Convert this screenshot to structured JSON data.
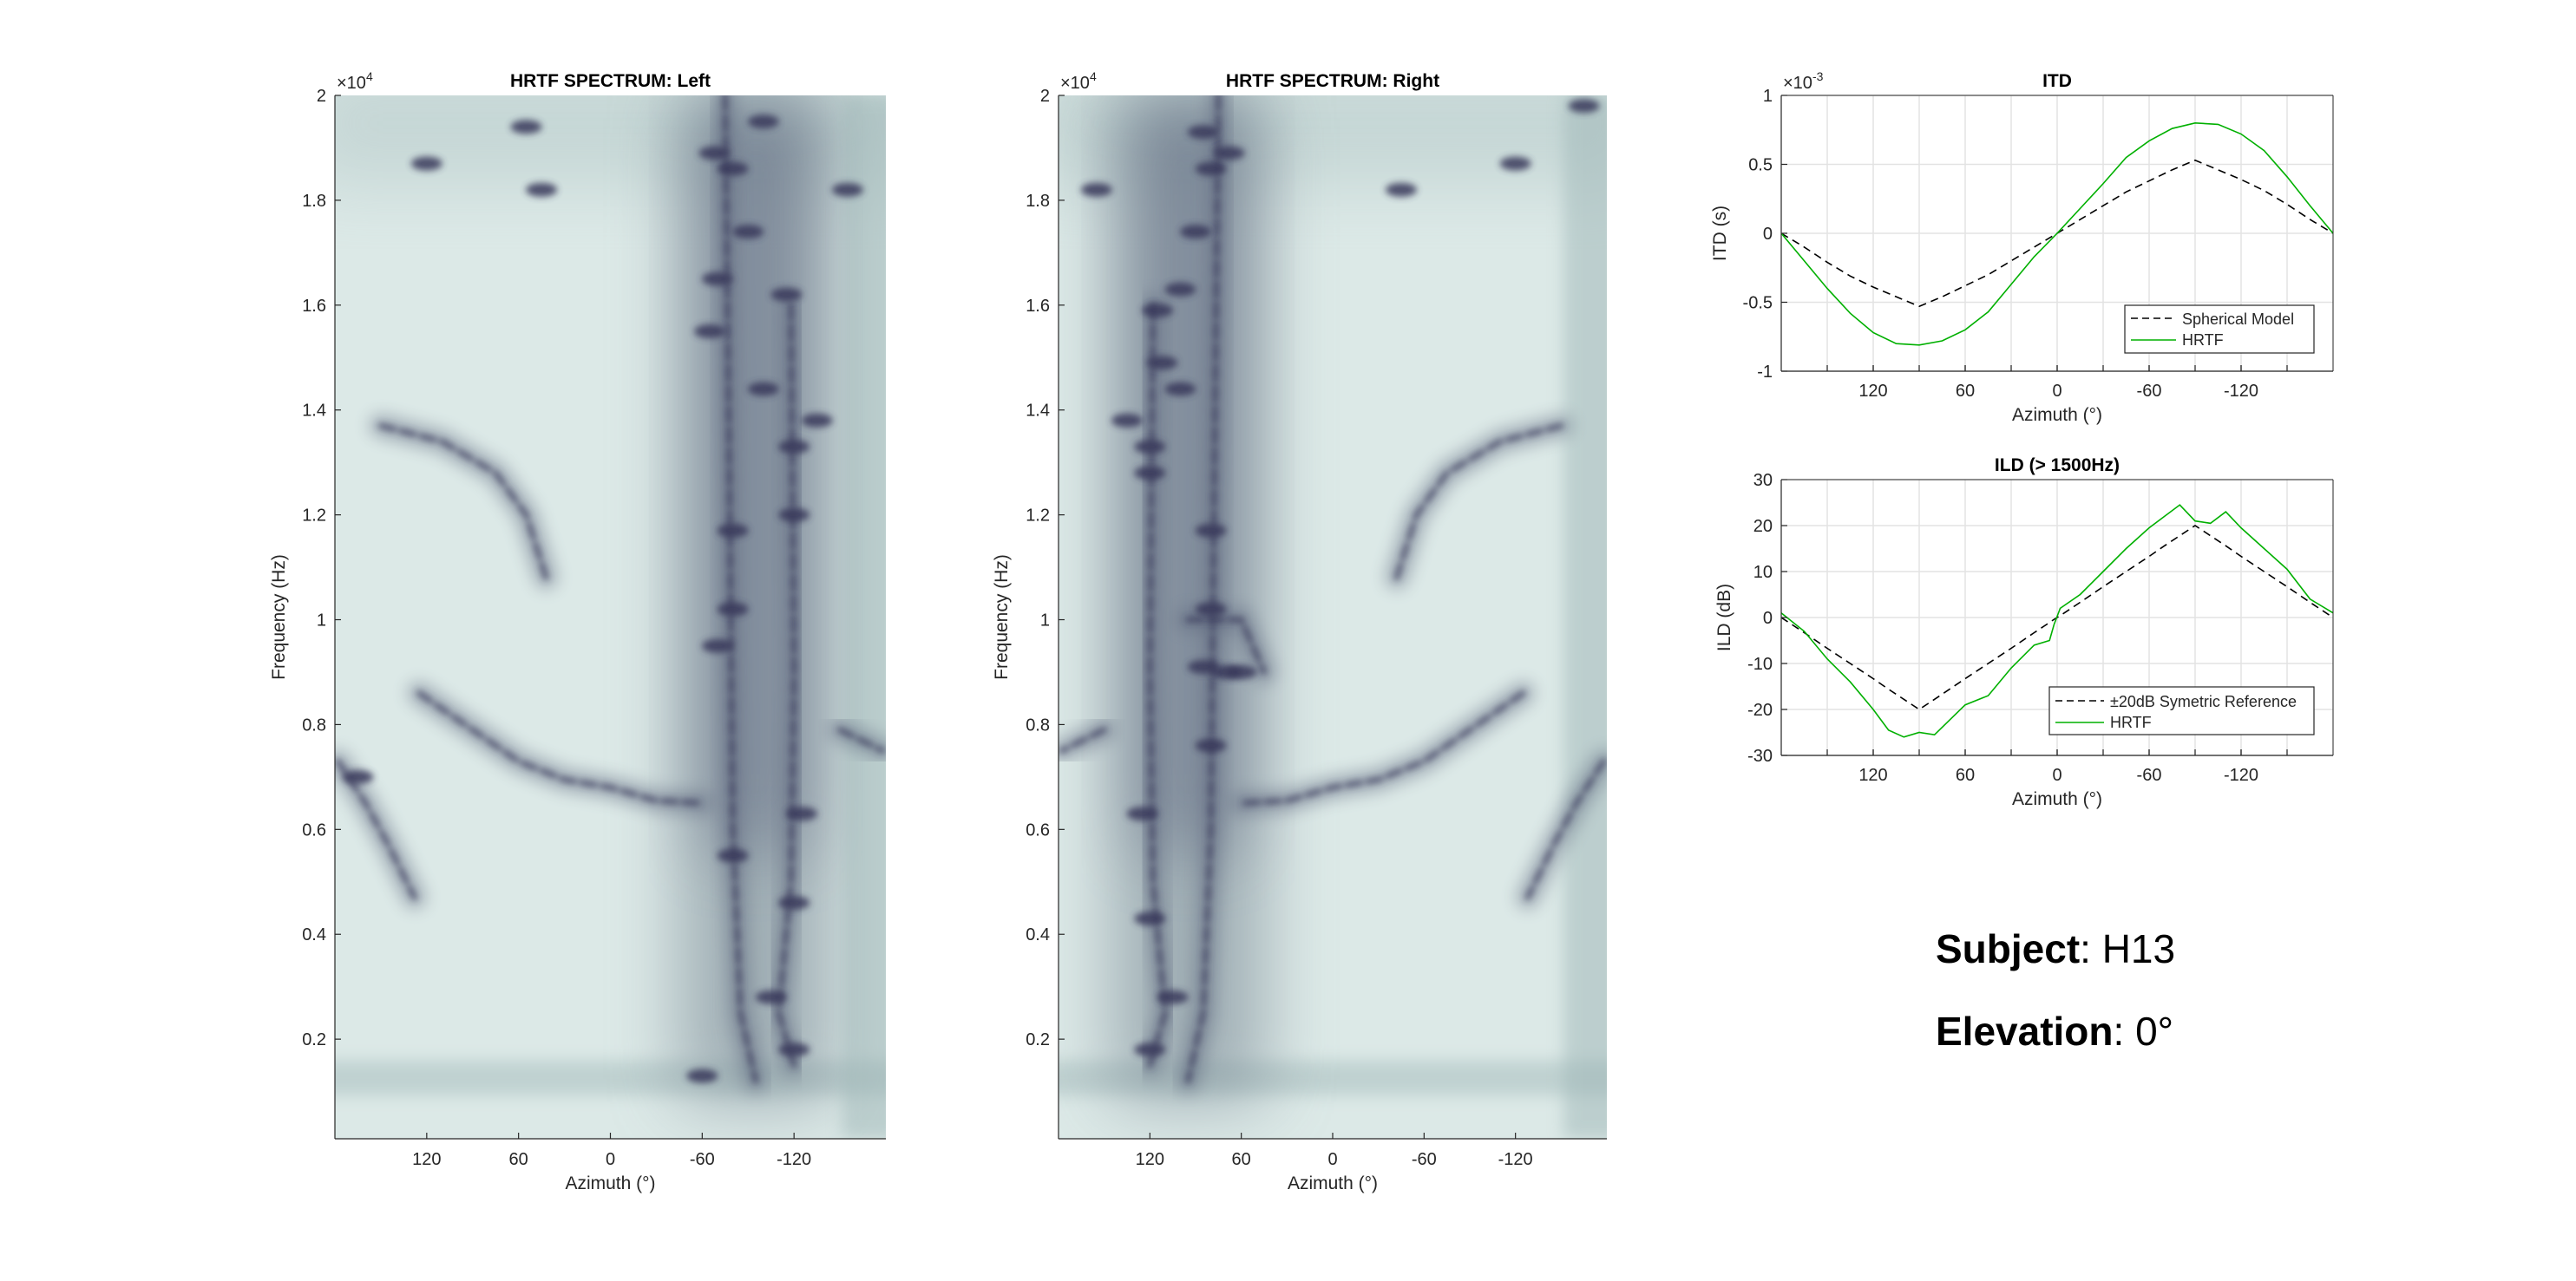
{
  "colors": {
    "heat_light": "#dce9e7",
    "heat_mid": "#9db5b6",
    "heat_dark": "#37375a",
    "hrtf_line": "#00b000",
    "model_line": "#000000",
    "grid": "#e3e3e3"
  },
  "info": {
    "subject_label": "Subject",
    "subject_value": ": H13",
    "elevation_label": "Elevation",
    "elevation_value": ": 0°"
  },
  "chart_data": [
    {
      "id": "left",
      "type": "heatmap",
      "title": "HRTF SPECTRUM: Left",
      "xlabel": "Azimuth (°)",
      "ylabel": "Frequency (Hz)",
      "y_exponent": "×10",
      "y_exponent_power": "4",
      "xlim": [
        180,
        -180
      ],
      "ylim": [
        100,
        20000
      ],
      "xticks": [
        120,
        60,
        0,
        -60,
        -120
      ],
      "xtick_labels": [
        "120",
        "60",
        "0",
        "-60",
        "-120"
      ],
      "yticks": [
        2000,
        4000,
        6000,
        8000,
        10000,
        12000,
        14000,
        16000,
        18000,
        20000
      ],
      "ytick_labels": [
        "0.2",
        "0.4",
        "0.6",
        "0.8",
        "1",
        "1.2",
        "1.4",
        "1.6",
        "1.8",
        "2"
      ],
      "colormap": "bone (reversed)",
      "dark_band": {
        "az": [
          -45,
          -145
        ],
        "freq": [
          800,
          20000
        ]
      },
      "notch_tracks": [
        [
          [
            125,
            8600
          ],
          [
            95,
            8000
          ],
          [
            60,
            7300
          ],
          [
            30,
            6950
          ],
          [
            0,
            6800
          ],
          [
            -30,
            6550
          ],
          [
            -60,
            6500
          ]
        ],
        [
          [
            178,
            7300
          ],
          [
            160,
            6500
          ],
          [
            145,
            5700
          ],
          [
            128,
            4700
          ]
        ],
        [
          [
            150,
            13700
          ],
          [
            110,
            13400
          ],
          [
            75,
            12800
          ],
          [
            55,
            12000
          ],
          [
            42,
            10800
          ]
        ],
        [
          [
            -150,
            7900
          ],
          [
            -178,
            7500
          ]
        ],
        [
          [
            -75,
            20000
          ],
          [
            -78,
            12000
          ],
          [
            -80,
            6000
          ],
          [
            -85,
            2500
          ],
          [
            -95,
            1200
          ]
        ],
        [
          [
            -118,
            16000
          ],
          [
            -120,
            9000
          ],
          [
            -118,
            5000
          ],
          [
            -110,
            2500
          ],
          [
            -120,
            1500
          ]
        ]
      ],
      "notches": [
        [
          -100,
          19500
        ],
        [
          -80,
          18600
        ],
        [
          -68,
          18900
        ],
        [
          -90,
          17400
        ],
        [
          -70,
          16500
        ],
        [
          -115,
          16200
        ],
        [
          -65,
          15500
        ],
        [
          -100,
          14400
        ],
        [
          -120,
          13300
        ],
        [
          -120,
          12000
        ],
        [
          -80,
          11700
        ],
        [
          -80,
          10200
        ],
        [
          -70,
          9500
        ],
        [
          -135,
          13800
        ],
        [
          -155,
          18200
        ],
        [
          45,
          18200
        ],
        [
          55,
          19400
        ],
        [
          120,
          18700
        ],
        [
          -80,
          5500
        ],
        [
          -120,
          4600
        ],
        [
          -125,
          6300
        ],
        [
          -105,
          2800
        ],
        [
          -120,
          1800
        ],
        [
          -60,
          1300
        ],
        [
          165,
          7000
        ]
      ]
    },
    {
      "id": "right",
      "type": "heatmap",
      "title": "HRTF SPECTRUM: Right",
      "xlabel": "Azimuth (°)",
      "ylabel": "Frequency (Hz)",
      "y_exponent": "×10",
      "y_exponent_power": "4",
      "xlim": [
        180,
        -180
      ],
      "ylim": [
        100,
        20000
      ],
      "xticks": [
        120,
        60,
        0,
        -60,
        -120
      ],
      "xtick_labels": [
        "120",
        "60",
        "0",
        "-60",
        "-120"
      ],
      "yticks": [
        2000,
        4000,
        6000,
        8000,
        10000,
        12000,
        14000,
        16000,
        18000,
        20000
      ],
      "ytick_labels": [
        "0.2",
        "0.4",
        "0.6",
        "0.8",
        "1",
        "1.2",
        "1.4",
        "1.6",
        "1.8",
        "2"
      ],
      "colormap": "bone (reversed)",
      "dark_band": {
        "az": [
          45,
          145
        ],
        "freq": [
          800,
          20000
        ]
      },
      "notch_tracks": [
        [
          [
            -125,
            8600
          ],
          [
            -95,
            8000
          ],
          [
            -60,
            7300
          ],
          [
            -30,
            6950
          ],
          [
            0,
            6800
          ],
          [
            30,
            6550
          ],
          [
            60,
            6500
          ]
        ],
        [
          [
            -178,
            7300
          ],
          [
            -160,
            6500
          ],
          [
            -145,
            5700
          ],
          [
            -128,
            4700
          ]
        ],
        [
          [
            -150,
            13700
          ],
          [
            -110,
            13400
          ],
          [
            -75,
            12800
          ],
          [
            -55,
            12000
          ],
          [
            -42,
            10800
          ]
        ],
        [
          [
            150,
            7900
          ],
          [
            178,
            7500
          ]
        ],
        [
          [
            75,
            20000
          ],
          [
            78,
            12000
          ],
          [
            80,
            6000
          ],
          [
            85,
            2500
          ],
          [
            95,
            1200
          ]
        ],
        [
          [
            118,
            16000
          ],
          [
            120,
            9000
          ],
          [
            118,
            5000
          ],
          [
            110,
            2500
          ],
          [
            120,
            1500
          ]
        ],
        [
          [
            95,
            10000
          ],
          [
            60,
            10000
          ],
          [
            45,
            9000
          ]
        ]
      ],
      "notches": [
        [
          85,
          19300
        ],
        [
          80,
          18600
        ],
        [
          68,
          18900
        ],
        [
          90,
          17400
        ],
        [
          100,
          16300
        ],
        [
          115,
          15900
        ],
        [
          112,
          14900
        ],
        [
          100,
          14400
        ],
        [
          120,
          13300
        ],
        [
          120,
          12800
        ],
        [
          80,
          11700
        ],
        [
          80,
          10200
        ],
        [
          70,
          9000
        ],
        [
          85,
          9100
        ],
        [
          135,
          13800
        ],
        [
          155,
          18200
        ],
        [
          -45,
          18200
        ],
        [
          -165,
          19800
        ],
        [
          -120,
          18700
        ],
        [
          80,
          7600
        ],
        [
          120,
          4300
        ],
        [
          125,
          6300
        ],
        [
          105,
          2800
        ],
        [
          120,
          1800
        ],
        [
          60,
          9000
        ]
      ]
    },
    {
      "id": "itd",
      "type": "line",
      "title": "ITD",
      "xlabel": "Azimuth (°)",
      "ylabel": "ITD (s)",
      "y_exponent": "×10",
      "y_exponent_power": "-3",
      "xlim": [
        180,
        -180
      ],
      "ylim": [
        -1,
        1
      ],
      "grid": true,
      "legend": "bottom-right",
      "xticks": [
        120,
        60,
        0,
        -60,
        -120
      ],
      "xtick_labels": [
        "120",
        "60",
        "0",
        "-60",
        "-120"
      ],
      "yticks": [
        -1,
        -0.5,
        0,
        0.5,
        1
      ],
      "ytick_labels": [
        "-1",
        "-0.5",
        "0",
        "0.5",
        "1"
      ],
      "x": [
        180,
        165,
        150,
        135,
        120,
        105,
        90,
        75,
        60,
        45,
        30,
        15,
        0,
        -15,
        -30,
        -45,
        -60,
        -75,
        -90,
        -105,
        -120,
        -135,
        -150,
        -165,
        -180
      ],
      "series": [
        {
          "name": "Spherical Model",
          "style": "dashed",
          "values": [
            0,
            -0.1,
            -0.21,
            -0.31,
            -0.39,
            -0.46,
            -0.53,
            -0.46,
            -0.38,
            -0.3,
            -0.2,
            -0.1,
            0,
            0.1,
            0.2,
            0.3,
            0.38,
            0.46,
            0.53,
            0.46,
            0.39,
            0.31,
            0.21,
            0.1,
            0
          ]
        },
        {
          "name": "HRTF",
          "style": "solid",
          "values": [
            0,
            -0.2,
            -0.4,
            -0.58,
            -0.72,
            -0.8,
            -0.81,
            -0.78,
            -0.7,
            -0.57,
            -0.37,
            -0.17,
            0,
            0.18,
            0.36,
            0.55,
            0.67,
            0.76,
            0.8,
            0.79,
            0.72,
            0.6,
            0.41,
            0.2,
            0
          ]
        }
      ]
    },
    {
      "id": "ild",
      "type": "line",
      "title": "ILD (> 1500Hz)",
      "xlabel": "Azimuth (°)",
      "ylabel": "ILD (dB)",
      "xlim": [
        180,
        -180
      ],
      "ylim": [
        -30,
        30
      ],
      "grid": true,
      "legend": "bottom-right",
      "xticks": [
        120,
        60,
        0,
        -60,
        -120
      ],
      "xtick_labels": [
        "120",
        "60",
        "0",
        "-60",
        "-120"
      ],
      "yticks": [
        -30,
        -20,
        -10,
        0,
        10,
        20,
        30
      ],
      "ytick_labels": [
        "-30",
        "-20",
        "-10",
        "0",
        "10",
        "20",
        "30"
      ],
      "x": [
        180,
        165,
        150,
        135,
        120,
        110,
        100,
        90,
        80,
        60,
        45,
        30,
        15,
        5,
        2,
        -2,
        -15,
        -30,
        -45,
        -60,
        -70,
        -80,
        -90,
        -100,
        -110,
        -120,
        -135,
        -150,
        -165,
        -180
      ],
      "series": [
        {
          "name": "±20dB Symetric Reference",
          "style": "dashed",
          "values": [
            0,
            -3.3,
            -6.7,
            -10,
            -13.3,
            -15.6,
            -17.8,
            -20,
            -17.8,
            -13.3,
            -10,
            -6.7,
            -3.3,
            -1.1,
            -0.4,
            0.4,
            3.3,
            6.7,
            10,
            13.3,
            15.6,
            17.8,
            20,
            17.8,
            15.6,
            13.3,
            10,
            6.7,
            3.3,
            0
          ]
        },
        {
          "name": "HRTF",
          "style": "solid",
          "values": [
            1,
            -3,
            -9,
            -14,
            -20,
            -24.5,
            -26,
            -25,
            -25.5,
            -19,
            -17,
            -11,
            -6,
            -5,
            -1.5,
            2,
            5,
            10,
            15,
            19.5,
            22,
            24.5,
            21,
            20.5,
            23,
            19.5,
            15,
            10.5,
            4,
            1
          ]
        }
      ]
    }
  ]
}
